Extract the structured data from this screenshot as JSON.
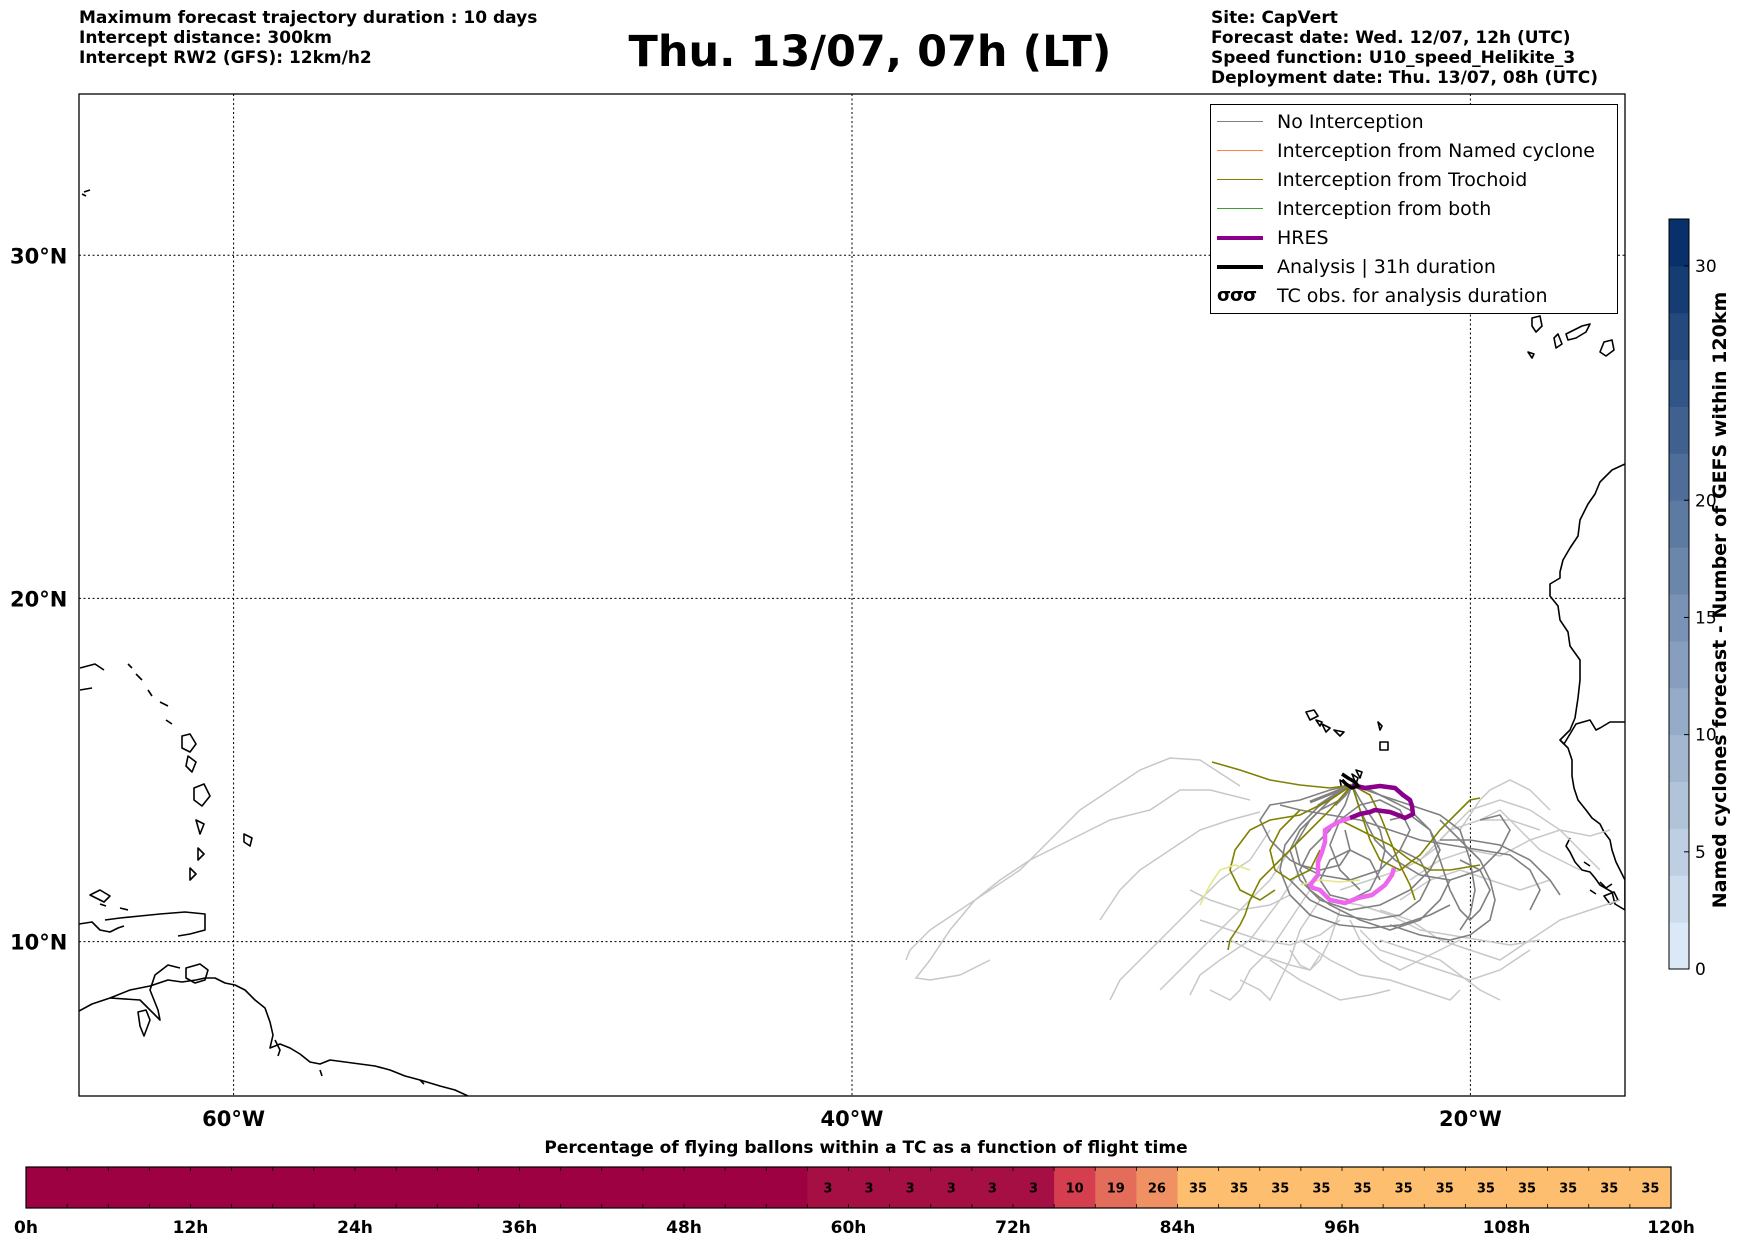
{
  "header": {
    "info_left": [
      "Maximum forecast trajectory duration : 10 days",
      "Intercept distance: 300km",
      "Intercept RW2 (GFS):  12km/h2"
    ],
    "title": "Thu. 13/07, 07h (LT)",
    "info_right": [
      "Site: CapVert",
      "Forecast date: Wed. 12/07, 12h (UTC)",
      "Speed function: U10_speed_Helikite_3",
      "Deployment date: Thu. 13/07, 08h (UTC)"
    ]
  },
  "map": {
    "lon_range": [
      -65,
      -15
    ],
    "lat_range": [
      5.5,
      34.7
    ],
    "lon_ticks": [
      {
        "value": -60,
        "label": "60°W"
      },
      {
        "value": -40,
        "label": "40°W"
      },
      {
        "value": -20,
        "label": "20°W"
      }
    ],
    "lat_ticks": [
      {
        "value": 10,
        "label": "10°N"
      },
      {
        "value": 20,
        "label": "20°N"
      },
      {
        "value": 30,
        "label": "30°N"
      }
    ],
    "gridlines": true,
    "colors": {
      "coastline": "#000000",
      "no_interception": "#808080",
      "no_interception_light": "#c8c8c8",
      "named_cyclone": "#ff7f50",
      "trochoid": "#808000",
      "trochoid_light": "#e6e68a",
      "both": "#3a9d3a",
      "hres": "#8b008b",
      "hres_light": "#ee66ee",
      "analysis": "#000000"
    }
  },
  "legend": {
    "placement": "upper-right",
    "items": [
      {
        "label": "No Interception",
        "color": "#808080",
        "style": "line"
      },
      {
        "label": "Interception from Named cyclone",
        "color": "#ff7f50",
        "style": "line"
      },
      {
        "label": "Interception from Trochoid",
        "color": "#808000",
        "style": "line"
      },
      {
        "label": "Interception from both",
        "color": "#3a9d3a",
        "style": "line"
      },
      {
        "label": "HRES",
        "color": "#8b008b",
        "style": "thick"
      },
      {
        "label": "Analysis | 31h duration",
        "color": "#000000",
        "style": "thick"
      },
      {
        "label": "TC obs. for analysis duration",
        "color": "#000000",
        "style": "symbol",
        "symbol": "σσσ"
      }
    ]
  },
  "colorbar": {
    "label": "Named cyclones forecast - Number of GEFS within 120km",
    "min": 0,
    "max": 32,
    "ticks": [
      0,
      5,
      10,
      15,
      20,
      30
    ],
    "levels": 16,
    "color_low": "#dbe8f5",
    "color_high": "#08306b"
  },
  "chart_data": {
    "type": "heatmap",
    "title": "Percentage of flying ballons within a TC as a function of flight time",
    "x_unit": "h",
    "xlim": [
      0,
      120
    ],
    "x_ticks": [
      {
        "value": 0,
        "label": "0h"
      },
      {
        "value": 12,
        "label": "12h"
      },
      {
        "value": 24,
        "label": "24h"
      },
      {
        "value": 36,
        "label": "36h"
      },
      {
        "value": 48,
        "label": "48h"
      },
      {
        "value": 60,
        "label": "60h"
      },
      {
        "value": 72,
        "label": "72h"
      },
      {
        "value": 84,
        "label": "84h"
      },
      {
        "value": 96,
        "label": "96h"
      },
      {
        "value": 108,
        "label": "108h"
      },
      {
        "value": 120,
        "label": "120h"
      }
    ],
    "bin_width_h": 3,
    "bin_starts_h": [
      0,
      3,
      6,
      9,
      12,
      15,
      18,
      21,
      24,
      27,
      30,
      33,
      36,
      39,
      42,
      45,
      48,
      51,
      54,
      57,
      60,
      63,
      66,
      69,
      72,
      75,
      78,
      81,
      84,
      87,
      90,
      93,
      96,
      99,
      102,
      105,
      108,
      111,
      114,
      117
    ],
    "values": [
      0,
      0,
      0,
      0,
      0,
      0,
      0,
      0,
      0,
      0,
      0,
      0,
      0,
      0,
      0,
      0,
      0,
      0,
      0,
      3,
      3,
      3,
      3,
      3,
      3,
      10,
      19,
      26,
      35,
      35,
      35,
      35,
      35,
      35,
      35,
      35,
      35,
      35,
      35,
      35
    ],
    "value_labels_shown_from": 3,
    "color_zero": "#9e0142",
    "color_low": "#a50f43",
    "color_mid": "#d53e4f",
    "color_high": "#fdbf6f"
  }
}
